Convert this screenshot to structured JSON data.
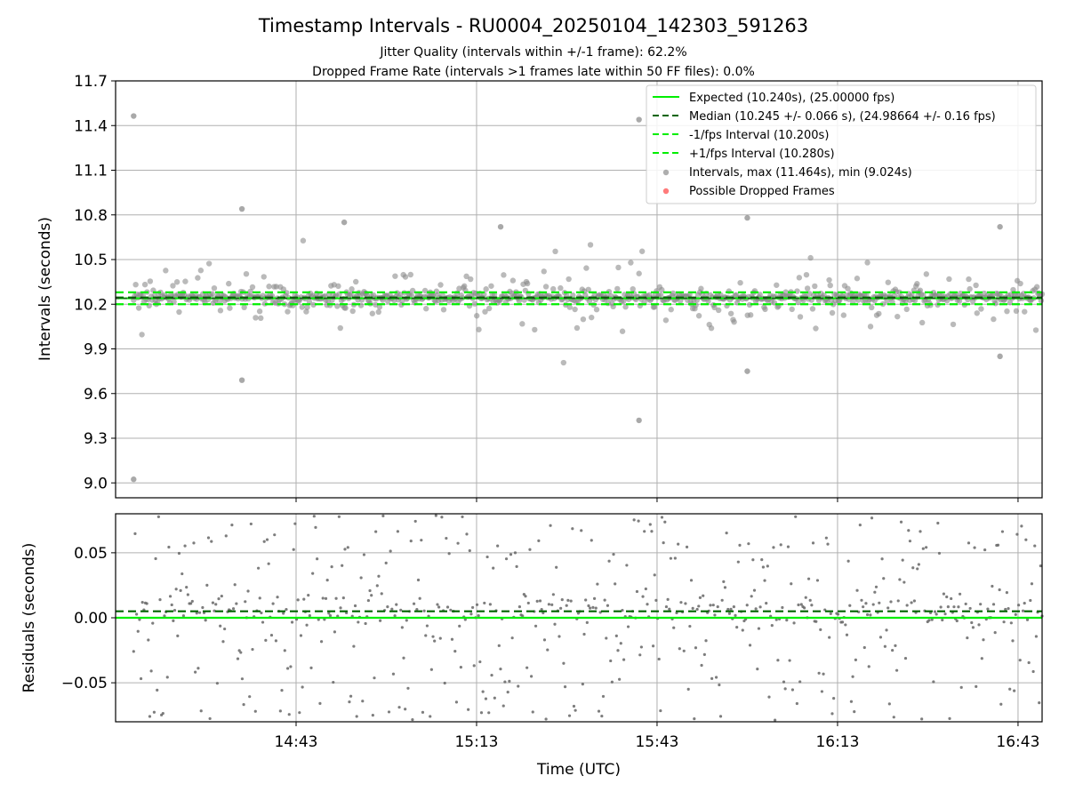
{
  "figure": {
    "title": "Timestamp Intervals - RU0004_20250104_142303_591263",
    "subtitle_jitter": "Jitter Quality (intervals within +/-1 frame): 62.2%",
    "subtitle_dropped": "Dropped Frame Rate (intervals >1 frames late within 50 FF files): 0.0%"
  },
  "chart_data": [
    {
      "type": "scatter",
      "panel": "intervals",
      "ylabel": "Intervals (seconds)",
      "ylim": [
        8.9,
        11.7
      ],
      "yticks": [
        "9.0",
        "9.3",
        "9.6",
        "9.9",
        "10.2",
        "10.5",
        "10.8",
        "11.1",
        "11.4",
        "11.7"
      ],
      "grid": true,
      "legend_position": "top-right",
      "reference_lines": [
        {
          "name": "Expected (10.240s), (25.00000 fps)",
          "y": 10.24,
          "color": "#00ee00",
          "style": "solid"
        },
        {
          "name": "Median (10.245 +/- 0.066 s), (24.98664 +/- 0.16 fps)",
          "y": 10.245,
          "color": "#006400",
          "style": "dashed"
        },
        {
          "name": "-1/fps Interval (10.200s)",
          "y": 10.2,
          "color": "#00ee00",
          "style": "dashed"
        },
        {
          "name": "+1/fps Interval (10.280s)",
          "y": 10.28,
          "color": "#00ee00",
          "style": "dashed"
        }
      ],
      "series": [
        {
          "name": "Intervals, max (11.464s), min (9.024s)",
          "color": "#8c8c8c",
          "max": 11.464,
          "min": 9.024,
          "notable_points": [
            {
              "x": "14:16",
              "y": 11.464
            },
            {
              "x": "14:16",
              "y": 9.024
            },
            {
              "x": "14:34",
              "y": 10.84
            },
            {
              "x": "14:34",
              "y": 9.69
            },
            {
              "x": "15:40",
              "y": 11.44
            },
            {
              "x": "15:40",
              "y": 9.42
            },
            {
              "x": "15:58",
              "y": 10.78
            },
            {
              "x": "15:58",
              "y": 9.75
            },
            {
              "x": "14:51",
              "y": 10.75
            },
            {
              "x": "15:17",
              "y": 10.72
            },
            {
              "x": "16:40",
              "y": 10.72
            },
            {
              "x": "16:40",
              "y": 9.85
            }
          ]
        },
        {
          "name": "Possible Dropped Frames",
          "color": "#ff5a5a",
          "points": []
        }
      ]
    },
    {
      "type": "scatter",
      "panel": "residuals",
      "ylabel": "Residuals (seconds)",
      "xlabel": "Time (UTC)",
      "ylim": [
        -0.08,
        0.08
      ],
      "yticks": [
        "−0.05",
        "0.00",
        "0.05"
      ],
      "x_range": [
        "14:16",
        "16:47"
      ],
      "xticks": [
        "14:43",
        "15:13",
        "15:43",
        "16:13",
        "16:43"
      ],
      "grid": true,
      "reference_lines": [
        {
          "y": 0.0,
          "color": "#00ee00",
          "style": "solid"
        },
        {
          "y": 0.005,
          "color": "#006400",
          "style": "dashed"
        }
      ],
      "series": [
        {
          "color": "#666666",
          "y_range": [
            -0.08,
            0.08
          ]
        }
      ]
    }
  ]
}
